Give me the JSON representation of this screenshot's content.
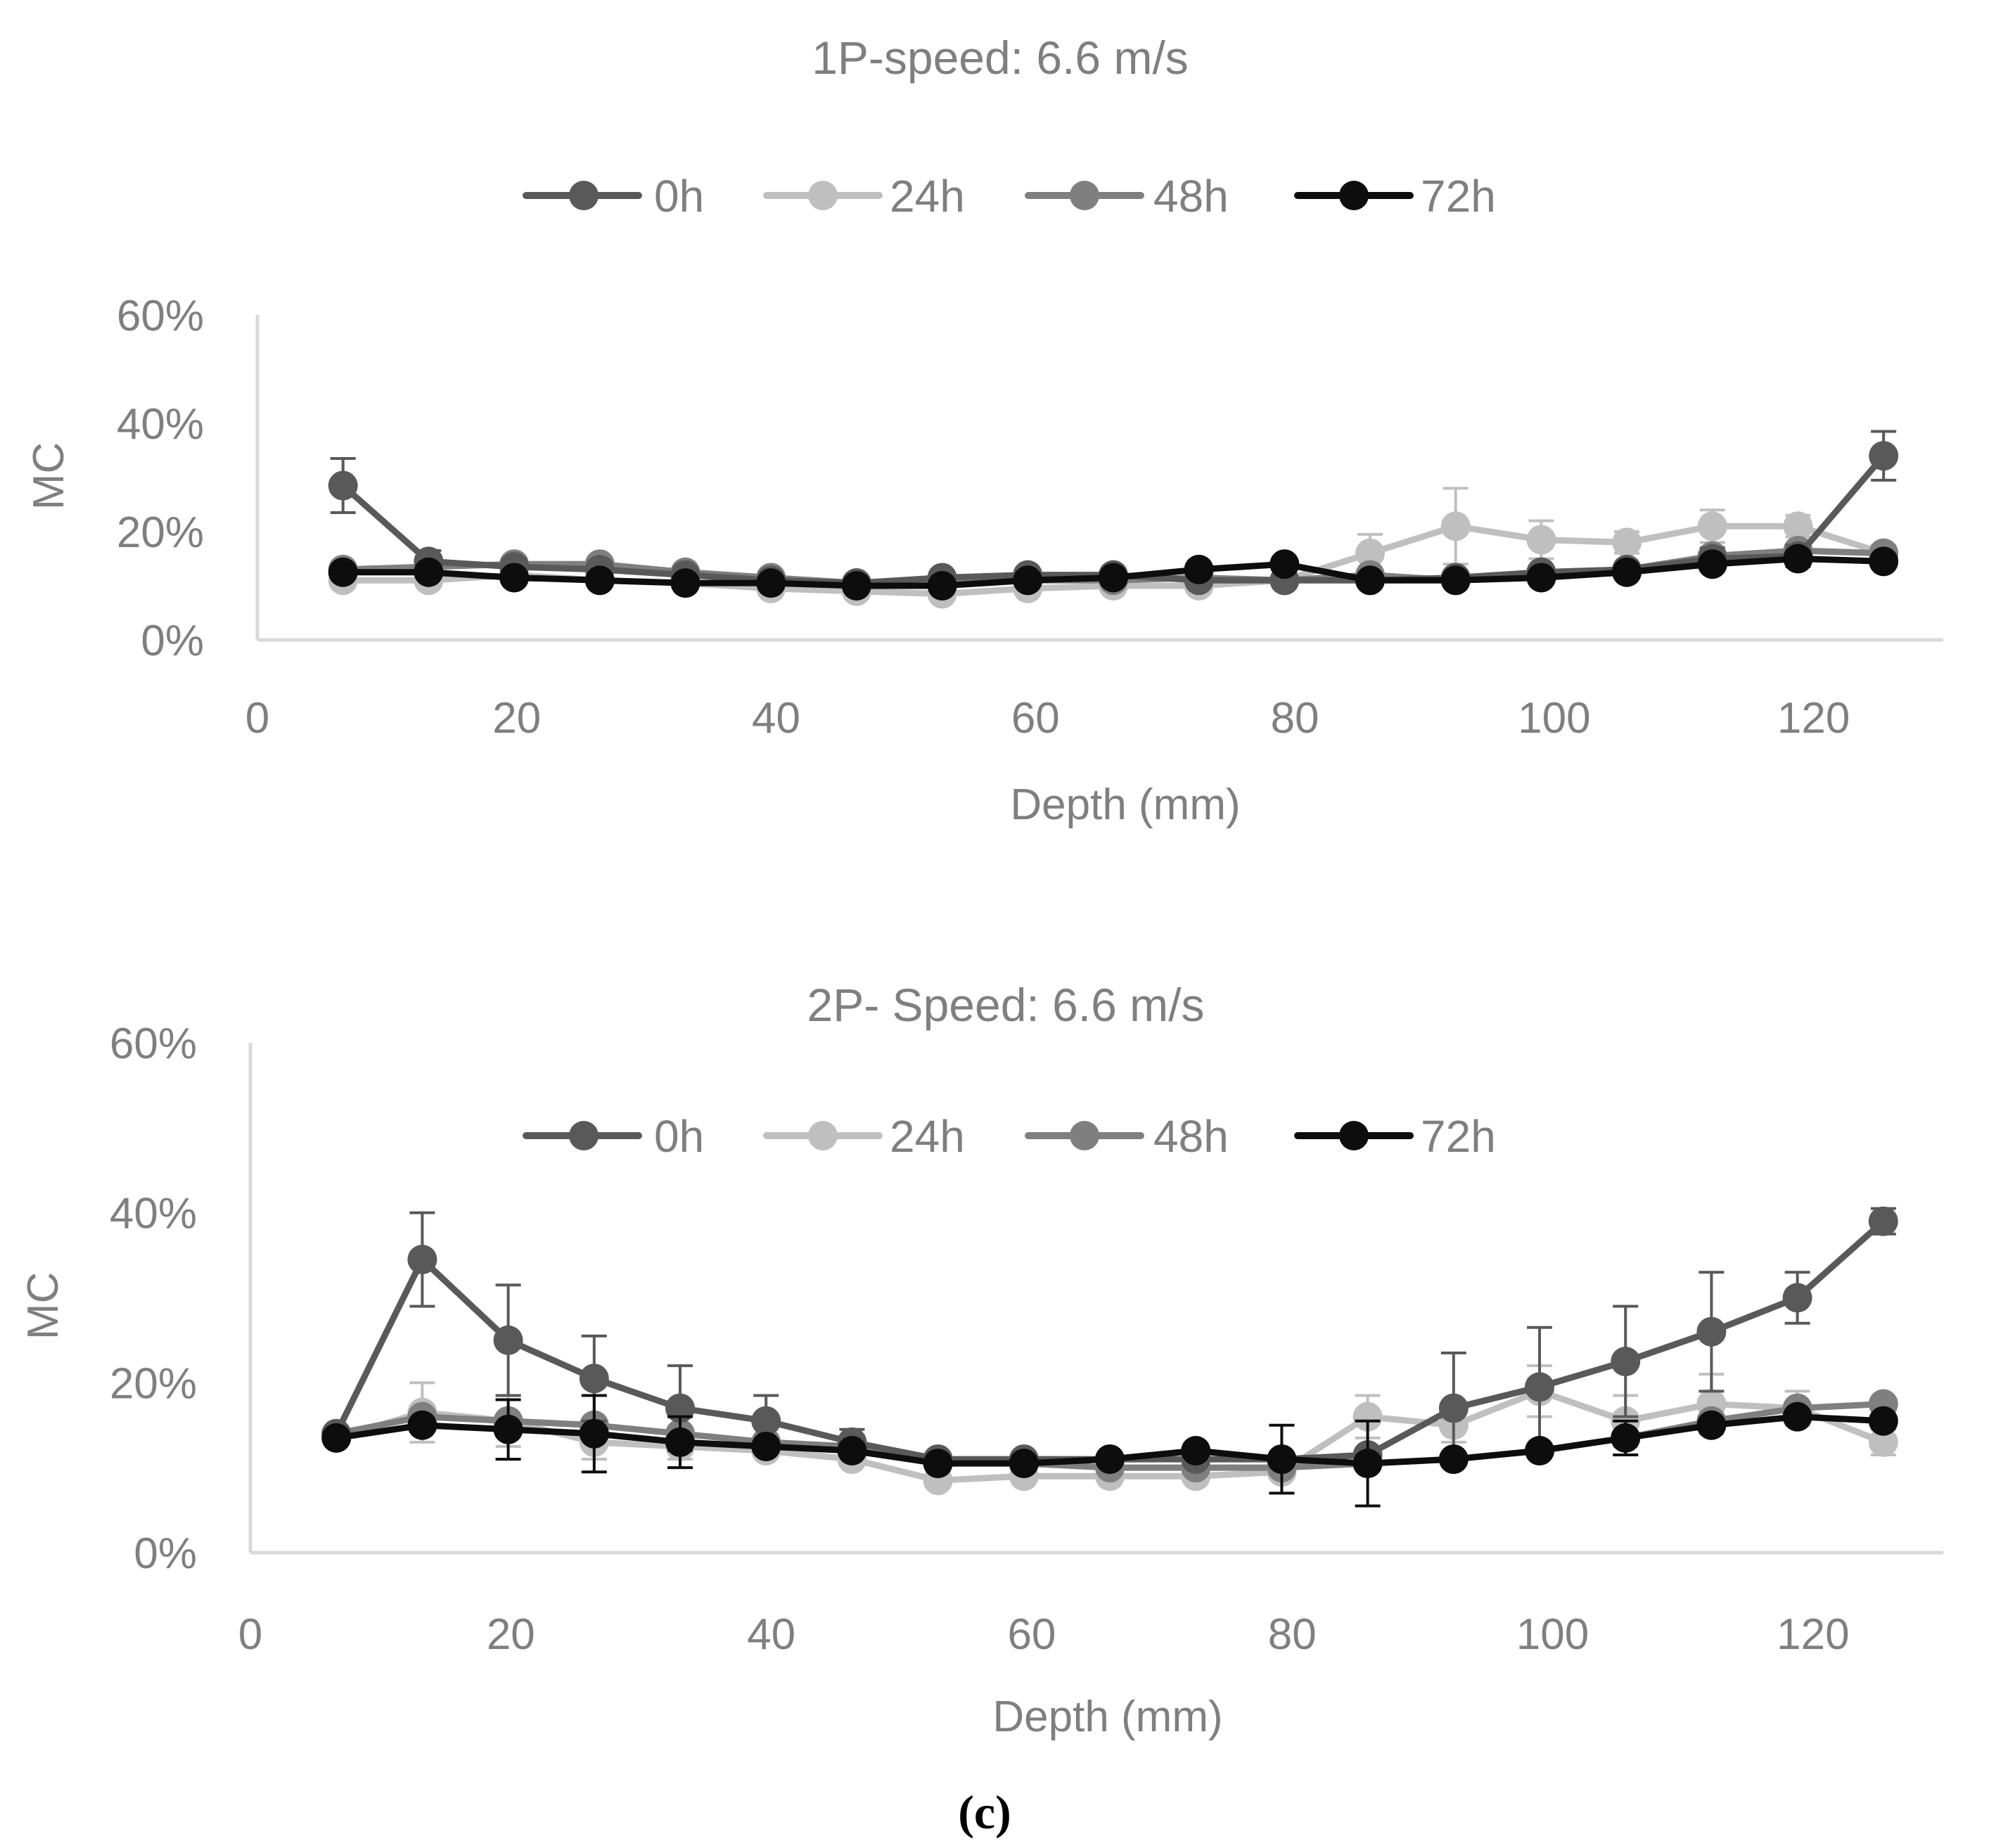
{
  "caption": "(c)",
  "colors": {
    "0h": "#595959",
    "24h": "#bfbfbf",
    "48h": "#7f7f7f",
    "72h": "#0d0d0d",
    "axis": "#d9d9d9",
    "text": "#7f7f7f"
  },
  "chart_data": [
    {
      "type": "line",
      "title": "1P-speed: 6.6 m/s",
      "xlabel": "Depth (mm)",
      "ylabel": "MC",
      "xlim": [
        0,
        130
      ],
      "ylim": [
        0,
        60
      ],
      "xticks": [
        "0",
        "20",
        "40",
        "60",
        "80",
        "100",
        "120"
      ],
      "yticks": [
        "0%",
        "20%",
        "40%",
        "60%"
      ],
      "legend": [
        "0h",
        "24h",
        "48h",
        "72h"
      ],
      "legend_position": "top",
      "x": [
        6.6,
        13.2,
        19.8,
        26.4,
        33,
        39.6,
        46.2,
        52.8,
        59.4,
        66,
        72.6,
        79.2,
        85.8,
        92.4,
        99,
        105.6,
        112.2,
        118.8,
        125.4
      ],
      "series": [
        {
          "name": "0h",
          "values": [
            28.5,
            14.5,
            13.5,
            13,
            12,
            11,
            10.5,
            11.5,
            12,
            12,
            11,
            11,
            11,
            11.5,
            12.5,
            13,
            15,
            15.5,
            34
          ],
          "error": [
            5,
            2,
            1.5,
            1.5,
            1,
            1,
            1,
            1,
            1,
            1,
            1,
            1,
            1,
            1,
            1,
            1,
            2,
            2,
            4.5
          ]
        },
        {
          "name": "24h",
          "values": [
            11,
            11,
            12,
            11,
            10.5,
            9.5,
            9,
            8.5,
            9.5,
            10,
            10,
            11,
            16,
            21,
            18.5,
            18,
            21,
            21,
            16
          ],
          "error": [
            1,
            1,
            1,
            1,
            1,
            1,
            1,
            1,
            1,
            1,
            1,
            1,
            3.5,
            7,
            3.5,
            2,
            3,
            2,
            1.5
          ]
        },
        {
          "name": "48h",
          "values": [
            13,
            13.5,
            14,
            14,
            12.5,
            11.5,
            10.5,
            10.5,
            11,
            11,
            11.5,
            11,
            12,
            11,
            12.5,
            13,
            15.5,
            16.5,
            16
          ],
          "error": [
            1,
            1,
            1,
            1,
            1,
            1,
            1,
            1,
            1,
            1,
            1,
            1,
            1,
            1,
            1,
            1,
            1,
            1,
            1
          ]
        },
        {
          "name": "72h",
          "values": [
            12.5,
            12.5,
            11.5,
            11,
            10.5,
            10.5,
            10,
            10,
            11,
            11.5,
            13,
            14,
            11,
            11,
            11.5,
            12.5,
            14,
            15,
            14.5
          ],
          "error": [
            1,
            1,
            1,
            1,
            1,
            1,
            1,
            1,
            1,
            1,
            1,
            1,
            1,
            1,
            1,
            1,
            1,
            1,
            1
          ]
        }
      ]
    },
    {
      "type": "line",
      "title": "2P- Speed: 6.6 m/s",
      "xlabel": "Depth (mm)",
      "ylabel": "MC",
      "xlim": [
        0,
        130
      ],
      "ylim": [
        0,
        60
      ],
      "xticks": [
        "0",
        "20",
        "40",
        "60",
        "80",
        "100",
        "120"
      ],
      "yticks": [
        "0%",
        "20%",
        "40%",
        "60%"
      ],
      "legend": [
        "0h",
        "24h",
        "48h",
        "72h"
      ],
      "legend_position": "top",
      "x": [
        6.6,
        13.2,
        19.8,
        26.4,
        33,
        39.6,
        46.2,
        52.8,
        59.4,
        66,
        72.6,
        79.2,
        85.8,
        92.4,
        99,
        105.6,
        112.2,
        118.8,
        125.4
      ],
      "series": [
        {
          "name": "0h",
          "values": [
            14,
            34.5,
            25,
            20.5,
            17,
            15.5,
            13,
            11,
            11,
            11,
            11,
            11,
            11.5,
            17,
            19.5,
            22.5,
            26,
            30,
            39
          ],
          "error": [
            1,
            5.5,
            6.5,
            5,
            5,
            3,
            1.5,
            1,
            1,
            1,
            1,
            1,
            1,
            6.5,
            7,
            6.5,
            7,
            3,
            1.5
          ]
        },
        {
          "name": "24h",
          "values": [
            13.5,
            16.5,
            15.5,
            13,
            12.5,
            12,
            11,
            8.5,
            9,
            9,
            9,
            9.5,
            16,
            15,
            19,
            15.5,
            17.5,
            17,
            13
          ],
          "error": [
            1,
            3.5,
            3,
            2,
            1.5,
            1,
            1,
            1,
            1,
            1,
            1,
            1,
            2.5,
            2,
            3,
            3,
            3.5,
            2,
            1.5
          ]
        },
        {
          "name": "48h",
          "values": [
            14,
            16,
            15.5,
            15,
            14,
            13,
            12.5,
            11,
            10.5,
            10,
            10,
            10,
            10.5,
            11,
            12,
            13.5,
            15.5,
            17,
            17.5
          ],
          "error": [
            1,
            1,
            1,
            1,
            1,
            1,
            1,
            1,
            1,
            1,
            1,
            1,
            1,
            1,
            1,
            1,
            1,
            1,
            1
          ]
        },
        {
          "name": "72h",
          "values": [
            13.5,
            15,
            14.5,
            14,
            13,
            12.5,
            12,
            10.5,
            10.5,
            11,
            12,
            11,
            10.5,
            11,
            12,
            13.5,
            15,
            16,
            15.5
          ],
          "error": [
            1,
            1,
            3.5,
            4.5,
            3,
            1,
            1,
            1,
            1,
            1,
            1,
            4,
            5,
            1,
            1,
            2,
            1,
            1,
            1
          ]
        }
      ]
    }
  ]
}
